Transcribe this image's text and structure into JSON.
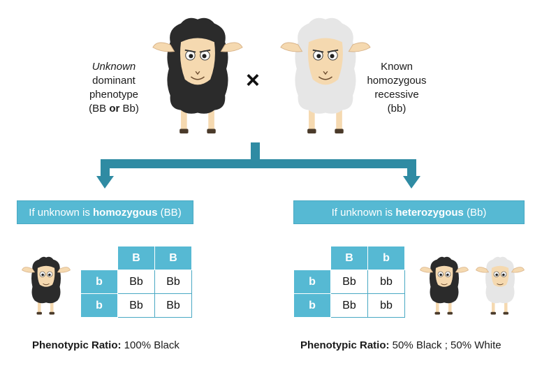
{
  "top": {
    "left_label": {
      "line1": "Unknown",
      "line2": "dominant",
      "line3": "phenotype",
      "line4_a": "(BB ",
      "line4_or": "or",
      "line4_b": " Bb)"
    },
    "cross_symbol": "×",
    "right_label": {
      "line1": "Known",
      "line2": "homozygous",
      "line3": "recessive",
      "line4": "(bb)"
    }
  },
  "left_case": {
    "banner_prefix": "If unknown is ",
    "banner_bold": "homozygous",
    "banner_suffix": " (BB)",
    "col_headers": [
      "B",
      "B"
    ],
    "rows": [
      {
        "header": "b",
        "cells": [
          "Bb",
          "Bb"
        ]
      },
      {
        "header": "b",
        "cells": [
          "Bb",
          "Bb"
        ]
      }
    ],
    "ratio_label": "Phenotypic Ratio:",
    "ratio_value": " 100% Black"
  },
  "right_case": {
    "banner_prefix": "If unknown is ",
    "banner_bold": "heterozygous",
    "banner_suffix": " (Bb)",
    "col_headers": [
      "B",
      "b"
    ],
    "rows": [
      {
        "header": "b",
        "cells": [
          "Bb",
          "bb"
        ]
      },
      {
        "header": "b",
        "cells": [
          "Bb",
          "bb"
        ]
      }
    ],
    "ratio_label": "Phenotypic Ratio:",
    "ratio_value": " 50% Black ; 50% White"
  },
  "colors": {
    "accent": "#56b9d3",
    "arrow": "#2f8ba3",
    "black_wool": "#2b2b2b",
    "white_wool": "#e6e6e6",
    "face": "#f5d9b0"
  }
}
